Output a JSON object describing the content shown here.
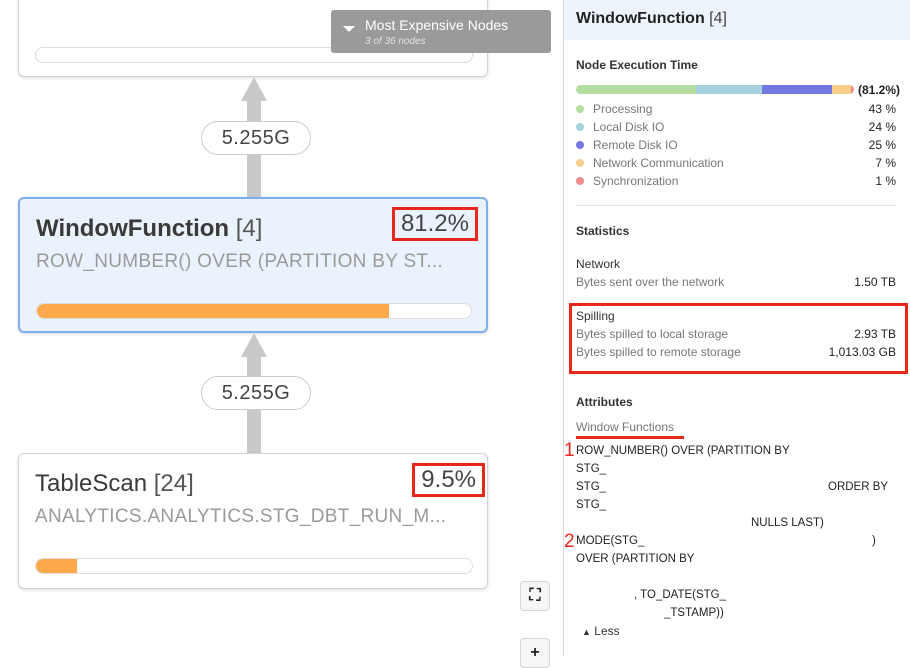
{
  "menu": {
    "title": "Most Expensive Nodes",
    "subtitle": "3 of 36 nodes"
  },
  "edges": [
    {
      "label": "5.255G"
    },
    {
      "label": "5.255G"
    }
  ],
  "nodes": [
    {
      "name": "WindowFunction",
      "id": "[4]",
      "subtitle": "ROW_NUMBER() OVER (PARTITION BY ST...",
      "percent_label": "81.2%",
      "percent": 81.2,
      "selected": true
    },
    {
      "name": "TableScan",
      "id": "[24]",
      "subtitle": "ANALYTICS.ANALYTICS.STG_DBT_RUN_M...",
      "percent_label": "9.5%",
      "percent": 9.5,
      "selected": false
    }
  ],
  "panel": {
    "title": "WindowFunction",
    "id": "[4]",
    "exec": {
      "heading": "Node Execution Time",
      "total": "(81.2%)",
      "items": [
        {
          "label": "Processing",
          "value": "43 %",
          "pct": 43,
          "color": "#b5dfa0"
        },
        {
          "label": "Local Disk IO",
          "value": "24 %",
          "pct": 24,
          "color": "#a3d2de"
        },
        {
          "label": "Remote Disk IO",
          "value": "25 %",
          "pct": 25,
          "color": "#7378e0"
        },
        {
          "label": "Network Communication",
          "value": "7 %",
          "pct": 7,
          "color": "#f8cf8a"
        },
        {
          "label": "Synchronization",
          "value": "1 %",
          "pct": 1,
          "color": "#ef8c8c"
        }
      ]
    },
    "stats": {
      "heading": "Statistics",
      "network": "Network",
      "net_label": "Bytes sent over the network",
      "net_value": "1.50 TB",
      "spilling": "Spilling",
      "local_label": "Bytes spilled to local storage",
      "local_value": "2.93 TB",
      "remote_label": "Bytes spilled to remote storage",
      "remote_value": "1,013.03 GB"
    },
    "attrs": {
      "heading": "Attributes",
      "tab": "Window Functions",
      "lines": [
        "ROW_NUMBER() OVER (PARTITION BY",
        "STG_",
        "STG_",
        "ORDER BY",
        "STG_",
        "NULLS LAST)",
        "MODE(STG_",
        ")",
        "OVER (PARTITION BY",
        ", TO_DATE(STG_",
        "_TSTAMP))"
      ],
      "markers": [
        "1",
        "2"
      ],
      "less": "Less"
    }
  }
}
